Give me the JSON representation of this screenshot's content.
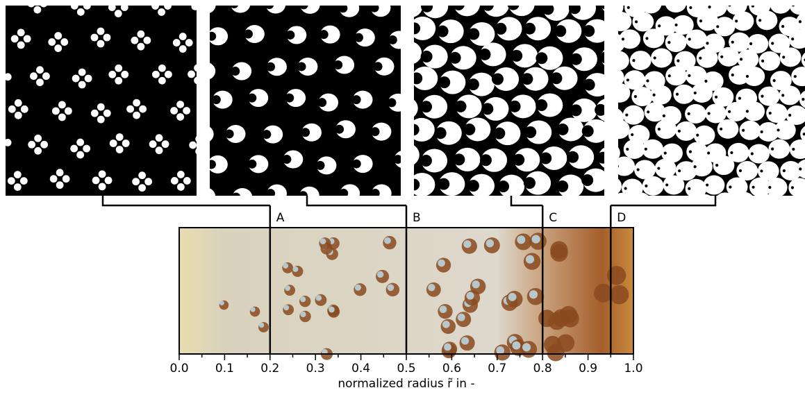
{
  "chart_data": {
    "type": "strip",
    "xlabel": "normalized radius r̃ in -",
    "xlim": [
      0,
      1
    ],
    "xticks": [
      {
        "value": 0,
        "label": "0.0"
      },
      0.1,
      0.2,
      0.3,
      0.4,
      0.5,
      0.6,
      0.7,
      0.8,
      0.9,
      {
        "value": 1,
        "label": "1.0"
      }
    ],
    "xminorticks": [
      0.05,
      0.15,
      0.25,
      0.35,
      0.45,
      0.55,
      0.65,
      0.75,
      0.85,
      0.95
    ],
    "markers": [
      {
        "label": "A",
        "x": 0.2
      },
      {
        "label": "B",
        "x": 0.5
      },
      {
        "label": "C",
        "x": 0.8
      },
      {
        "label": "D",
        "x": 0.95
      }
    ]
  }
}
